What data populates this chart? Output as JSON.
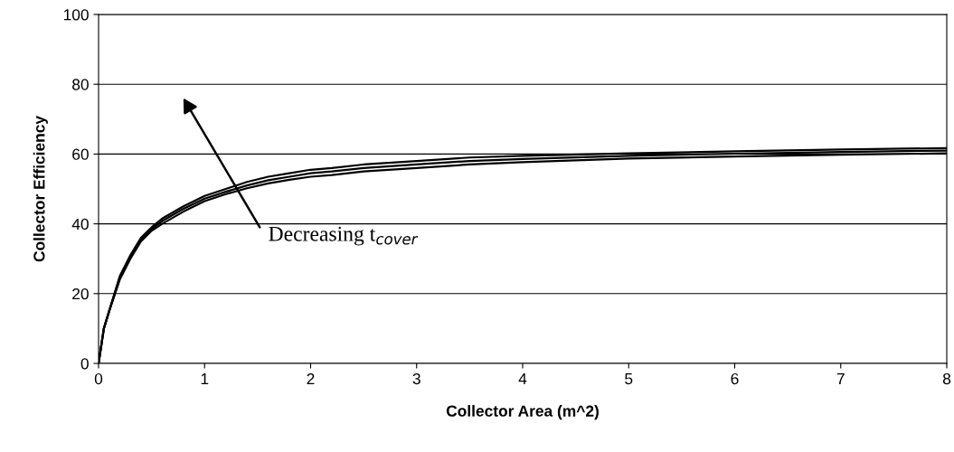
{
  "chart_data": {
    "type": "line",
    "xlabel": "Collector Area (m^2)",
    "ylabel": "Collector Efficiency",
    "x": [
      0,
      0.05,
      0.1,
      0.2,
      0.3,
      0.4,
      0.5,
      0.6,
      0.8,
      1.0,
      1.2,
      1.4,
      1.6,
      1.8,
      2.0,
      2.2,
      2.5,
      3,
      3.5,
      4,
      5,
      6,
      7,
      8
    ],
    "series": [
      {
        "color": "#000000",
        "values": [
          0,
          10,
          15,
          25,
          31,
          36,
          39,
          41.5,
          45,
          48,
          50,
          52,
          53.5,
          54.5,
          55.5,
          56,
          57,
          58,
          59,
          59.5,
          60.2,
          60.8,
          61.3,
          61.7
        ]
      },
      {
        "color": "#000000",
        "values": [
          0,
          10,
          15,
          24.5,
          30.5,
          35.5,
          38.5,
          40.8,
          44.3,
          47.2,
          49.2,
          51,
          52.5,
          53.5,
          54.5,
          55,
          56,
          57,
          58,
          58.6,
          59.5,
          60.1,
          60.6,
          61
        ]
      },
      {
        "color": "#000000",
        "values": [
          0,
          10,
          15,
          24,
          30,
          35,
          38,
          40,
          43.5,
          46.5,
          48.5,
          50.2,
          51.6,
          52.6,
          53.5,
          54,
          55,
          56,
          57,
          57.7,
          58.7,
          59.3,
          59.8,
          60.2
        ]
      }
    ],
    "xlim": [
      0,
      8
    ],
    "xticks": [
      0,
      1,
      2,
      3,
      4,
      5,
      6,
      7,
      8
    ],
    "ylim": [
      0,
      100
    ],
    "yticks": [
      0,
      20,
      40,
      60,
      80,
      100
    ],
    "grid": "y",
    "marker": "none",
    "line_style": "solid",
    "annotations": [
      "Decreasing t$_{cover}$"
    ]
  }
}
